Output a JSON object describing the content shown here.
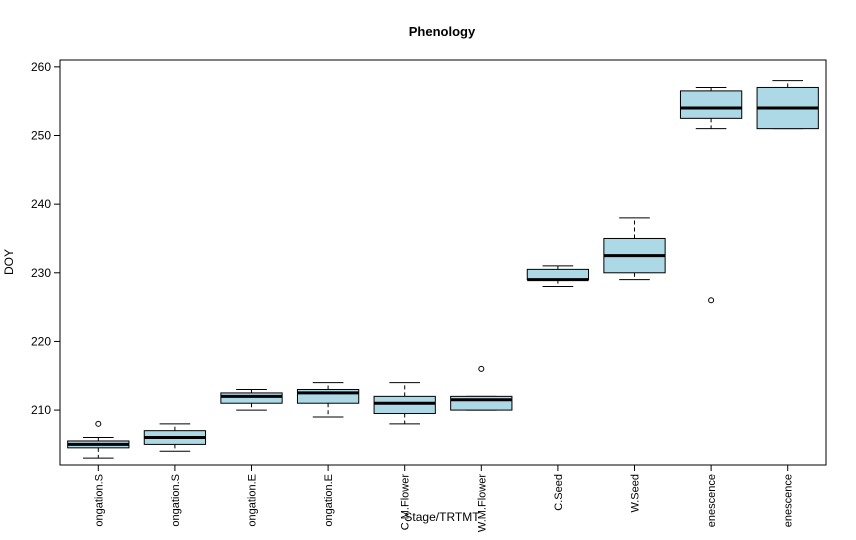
{
  "chart_data": {
    "type": "boxplot",
    "title": "Phenology",
    "xlabel": "Stage/TRTMT",
    "ylabel": "DOY",
    "ylim": [
      202,
      261
    ],
    "yticks": [
      210,
      220,
      230,
      240,
      250,
      260
    ],
    "box_fill": "#add8e6",
    "categories": [
      "ongation.S",
      "ongation.S",
      "ongation.E",
      "ongation.E",
      "C.M.Flower",
      "W.M.Flower",
      "C.Seed",
      "W.Seed",
      "enescence",
      "enescence"
    ],
    "boxes": [
      {
        "whisker_low": 203,
        "q1": 204.5,
        "median": 205,
        "q3": 205.5,
        "whisker_high": 206,
        "outliers": [
          208
        ]
      },
      {
        "whisker_low": 204,
        "q1": 205,
        "median": 206,
        "q3": 207,
        "whisker_high": 208,
        "outliers": []
      },
      {
        "whisker_low": 210,
        "q1": 211,
        "median": 212,
        "q3": 212.5,
        "whisker_high": 213,
        "outliers": []
      },
      {
        "whisker_low": 209,
        "q1": 211,
        "median": 212.5,
        "q3": 213,
        "whisker_high": 214,
        "outliers": []
      },
      {
        "whisker_low": 208,
        "q1": 209.5,
        "median": 211,
        "q3": 212,
        "whisker_high": 214,
        "outliers": []
      },
      {
        "whisker_low": 210,
        "q1": 210,
        "median": 211.5,
        "q3": 212,
        "whisker_high": 212,
        "outliers": [
          216
        ]
      },
      {
        "whisker_low": 228,
        "q1": 229,
        "median": 229,
        "q3": 230.5,
        "whisker_high": 231,
        "outliers": []
      },
      {
        "whisker_low": 229,
        "q1": 230,
        "median": 232.5,
        "q3": 235,
        "whisker_high": 238,
        "outliers": []
      },
      {
        "whisker_low": 251,
        "q1": 252.5,
        "median": 254,
        "q3": 256.5,
        "whisker_high": 257,
        "outliers": [
          226
        ]
      },
      {
        "whisker_low": 251,
        "q1": 251,
        "median": 254,
        "q3": 257,
        "whisker_high": 258,
        "outliers": []
      }
    ]
  }
}
